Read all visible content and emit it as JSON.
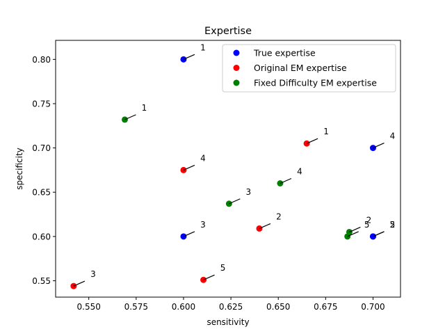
{
  "chart_data": {
    "type": "scatter",
    "title": "Expertise",
    "xlabel": "sensitivity",
    "ylabel": "specificity",
    "xlim": [
      0.5325,
      0.7145
    ],
    "ylim": [
      0.5315,
      0.8215
    ],
    "xticks": [
      0.55,
      0.575,
      0.6,
      0.625,
      0.65,
      0.675,
      0.7
    ],
    "xtick_labels": [
      "0.550",
      "0.575",
      "0.600",
      "0.625",
      "0.650",
      "0.675",
      "0.700"
    ],
    "yticks": [
      0.55,
      0.6,
      0.65,
      0.7,
      0.75,
      0.8
    ],
    "ytick_labels": [
      "0.55",
      "0.60",
      "0.65",
      "0.70",
      "0.75",
      "0.80"
    ],
    "grid": false,
    "legend_position": "top-right",
    "series": [
      {
        "name": "True expertise",
        "color": "#0000ff",
        "points": [
          {
            "x": 0.6,
            "y": 0.8,
            "label": "1"
          },
          {
            "x": 0.7,
            "y": 0.6,
            "label": "2"
          },
          {
            "x": 0.6,
            "y": 0.6,
            "label": "3"
          },
          {
            "x": 0.7,
            "y": 0.7,
            "label": "4"
          },
          {
            "x": 0.7,
            "y": 0.6,
            "label": "5"
          }
        ]
      },
      {
        "name": "Original EM expertise",
        "color": "#ff0000",
        "points": [
          {
            "x": 0.665,
            "y": 0.705,
            "label": "1"
          },
          {
            "x": 0.64,
            "y": 0.609,
            "label": "2"
          },
          {
            "x": 0.542,
            "y": 0.544,
            "label": "3"
          },
          {
            "x": 0.6,
            "y": 0.675,
            "label": "4"
          },
          {
            "x": 0.6105,
            "y": 0.551,
            "label": "5"
          }
        ]
      },
      {
        "name": "Fixed Difficulty EM expertise",
        "color": "#008000",
        "points": [
          {
            "x": 0.569,
            "y": 0.732,
            "label": "1"
          },
          {
            "x": 0.6875,
            "y": 0.605,
            "label": "2"
          },
          {
            "x": 0.624,
            "y": 0.637,
            "label": "3"
          },
          {
            "x": 0.651,
            "y": 0.66,
            "label": "4"
          },
          {
            "x": 0.6865,
            "y": 0.6,
            "label": "5"
          }
        ]
      }
    ]
  }
}
